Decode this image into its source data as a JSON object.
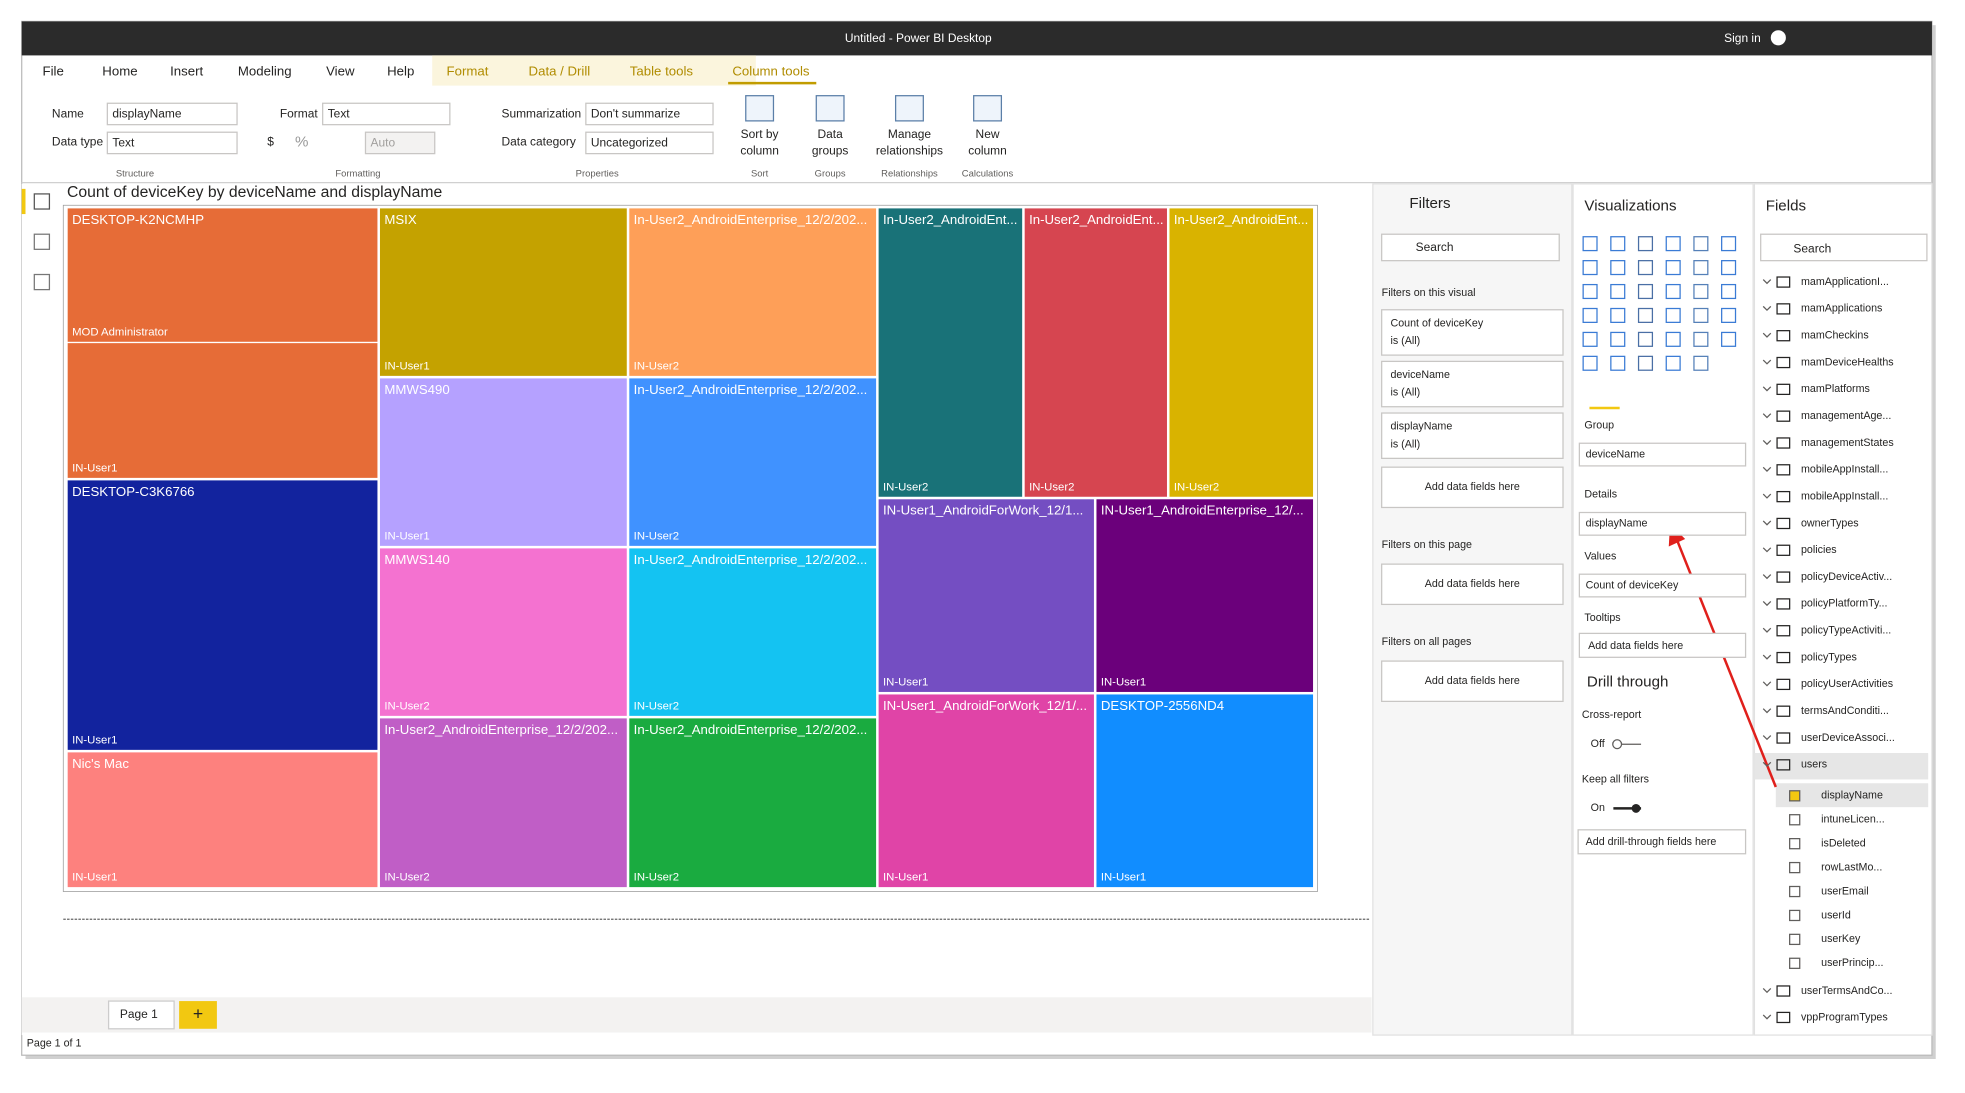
{
  "window": {
    "title": "Untitled - Power BI Desktop",
    "sign_in": "Sign in"
  },
  "tabs": [
    "File",
    "Home",
    "Insert",
    "Modeling",
    "View",
    "Help",
    "Format",
    "Data / Drill",
    "Table tools",
    "Column tools"
  ],
  "ribbon": {
    "name_label": "Name",
    "name_value": "displayName",
    "datatype_label": "Data type",
    "datatype_value": "Text",
    "structure": "Structure",
    "format_label": "Format",
    "format_value": "Text",
    "symbols": [
      "$",
      "%"
    ],
    "auto": "Auto",
    "formatting": "Formatting",
    "summarization_label": "Summarization",
    "summarization_value": "Don't summarize",
    "category_label": "Data category",
    "category_value": "Uncategorized",
    "properties": "Properties",
    "buttons": [
      {
        "line1": "Sort by",
        "line2": "column",
        "group": "Sort"
      },
      {
        "line1": "Data",
        "line2": "groups",
        "group": "Groups"
      },
      {
        "line1": "Manage",
        "line2": "relationships",
        "group": "Relationships"
      },
      {
        "line1": "New",
        "line2": "column",
        "group": "Calculations"
      }
    ]
  },
  "visual": {
    "title": "Count of deviceKey by deviceName and displayName",
    "tiles": [
      {
        "group": "DESKTOP-K2NCMHP",
        "detail": "MOD Administrator",
        "color": "#e66c37"
      },
      {
        "detail": "IN-User1",
        "color": "#e66c37"
      },
      {
        "group": "DESKTOP-C3K6766",
        "detail": "IN-User1",
        "color": "#12239e"
      },
      {
        "group": "Nic's Mac",
        "detail": "IN-User1",
        "color": "#fd817e"
      },
      {
        "group": "MSIX",
        "detail": "IN-User1",
        "color": "#c4a200"
      },
      {
        "group": "MMWS490",
        "detail": "IN-User1",
        "color": "#b5a1ff"
      },
      {
        "group": "MMWS140",
        "detail": "IN-User2",
        "color": "#f472d0"
      },
      {
        "group": "In-User2_AndroidEnterprise_12/2/202...",
        "detail": "IN-User2",
        "color": "#c05ec6"
      },
      {
        "group": "In-User2_AndroidEnterprise_12/2/202...",
        "detail": "IN-User2",
        "color": "#fe9f58"
      },
      {
        "group": "In-User2_AndroidEnterprise_12/2/202...",
        "detail": "IN-User2",
        "color": "#4092ff"
      },
      {
        "group": "In-User2_AndroidEnterprise_12/2/202...",
        "detail": "IN-User2",
        "color": "#14c3f2"
      },
      {
        "group": "In-User2_AndroidEnterprise_12/2/202...",
        "detail": "IN-User2",
        "color": "#1aab40"
      },
      {
        "group": "In-User2_AndroidEnt...",
        "detail": "IN-User2",
        "color": "#197278"
      },
      {
        "group": "In-User2_AndroidEnt...",
        "detail": "IN-User2",
        "color": "#d64550"
      },
      {
        "group": "In-User2_AndroidEnt...",
        "detail": "IN-User2",
        "color": "#d9b300"
      },
      {
        "group": "IN-User1_AndroidForWork_12/1...",
        "detail": "IN-User1",
        "color": "#744ec2"
      },
      {
        "group": "IN-User1_AndroidEnterprise_12/...",
        "detail": "IN-User1",
        "color": "#6b007b"
      },
      {
        "group": "IN-User1_AndroidForWork_12/1/...",
        "detail": "IN-User1",
        "color": "#e044a7"
      },
      {
        "group": "DESKTOP-2556ND4",
        "detail": "IN-User1",
        "color": "#118dff"
      }
    ]
  },
  "filters": {
    "title": "Filters",
    "search": "Search",
    "on_visual": "Filters on this visual",
    "cards": [
      {
        "field": "Count of deviceKey",
        "state": "is (All)"
      },
      {
        "field": "deviceName",
        "state": "is (All)"
      },
      {
        "field": "displayName",
        "state": "is (All)"
      }
    ],
    "add_visual": "Add data fields here",
    "on_page": "Filters on this page",
    "add_page": "Add data fields here",
    "on_all": "Filters on all pages",
    "add_all": "Add data fields here"
  },
  "visualizations": {
    "title": "Visualizations",
    "group_label": "Group",
    "group_value": "deviceName",
    "details_label": "Details",
    "details_value": "displayName",
    "values_label": "Values",
    "values_value": "Count of deviceKey",
    "tooltips_label": "Tooltips",
    "tooltips_add": "Add data fields here",
    "drill": "Drill through",
    "cross_report": "Cross-report",
    "off": "Off",
    "keep_filters": "Keep all filters",
    "on": "On",
    "drill_add": "Add drill-through fields here"
  },
  "fields": {
    "title": "Fields",
    "search": "Search",
    "tables": [
      "mamApplicationI...",
      "mamApplications",
      "mamCheckins",
      "mamDeviceHealths",
      "mamPlatforms",
      "managementAge...",
      "managementStates",
      "mobileAppInstall...",
      "mobileAppInstall...",
      "ownerTypes",
      "policies",
      "policyDeviceActiv...",
      "policyPlatformTy...",
      "policyTypeActiviti...",
      "policyTypes",
      "policyUserActivities",
      "termsAndConditi...",
      "userDeviceAssoci...",
      "users"
    ],
    "columns": [
      "displayName",
      "intuneLicen...",
      "isDeleted",
      "rowLastMo...",
      "userEmail",
      "userId",
      "userKey",
      "userPrincip..."
    ],
    "tables_after": [
      "userTermsAndCo...",
      "vppProgramTypes"
    ]
  },
  "pages": {
    "tab": "Page 1",
    "status": "Page 1 of 1"
  }
}
